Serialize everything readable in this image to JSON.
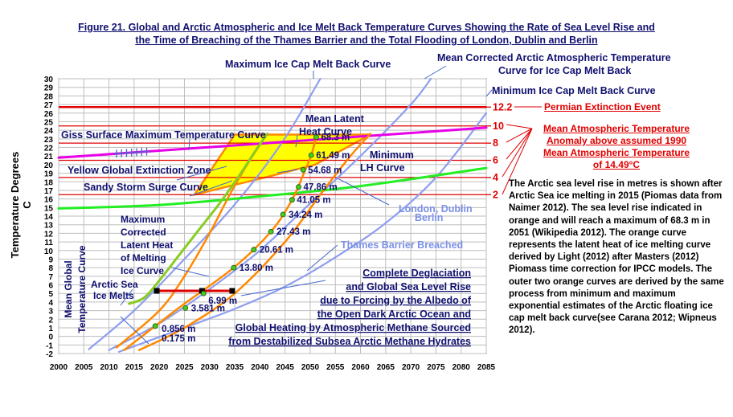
{
  "title_lines": [
    "Figure 21.  Global and Arctic Atmospheric and Ice Melt Back Temperature Curves Showing the Rate of Sea Level Rise and",
    "the Time of Breaching of the Thames Barrier and the Total Flooding of London, Dublin and Berlin"
  ],
  "side_text": "The Arctic sea level rise in metres is shown after Arctic Sea ice melting in 2015 (Piomas data from Naimer 2012). The sea level rise indicated in orange and will reach  a maximum of 68.3 m in 2051 (Wikipedia 2012). The orange curve represents the latent heat of ice melting curve derived by Light (2012) after Masters (2012) Piomass  time correction for IPCC models. The outer two orange curves are derived by the same process from minimum and maximum exponential estimates of the Arctic  floating ice cap melt back curve(see Carana 2012; Wipneus 2012).",
  "anomaly_label_lines": [
    "Mean Atmospheric Temperature",
    "Anomaly above assumed 1990",
    "Mean Atmospheric Temperature",
    "of 14.49°C"
  ],
  "permian_label": "Permian Extinction Event",
  "colors": {
    "blue_curve": "#8e9ef0",
    "magenta": "#e800e8",
    "green": "#22ee22",
    "orange": "#ff8800",
    "olive": "#88cc22",
    "yellow": "#ffff00",
    "red": "#e00000",
    "navy_text": "#101070",
    "thames_text": "#7b90e6"
  },
  "chart_data": {
    "type": "line",
    "title": "Figure 21.  Global and Arctic Atmospheric and Ice Melt Back Temperature Curves Showing the Rate of Sea Level Rise and the Time of Breaching of the Thames Barrier and the Total Flooding of London, Dublin and Berlin",
    "xlabel": "",
    "ylabel": "Temperature Degrees C",
    "xlim": [
      2000,
      2085
    ],
    "ylim": [
      -2,
      30
    ],
    "xticks": [
      "2000",
      "2005",
      "2010",
      "2015",
      "2020",
      "2025",
      "2030",
      "2035",
      "2040",
      "2045",
      "2050",
      "2055",
      "2060",
      "2065",
      "2070",
      "2075",
      "2080",
      "2085"
    ],
    "yticks": [
      "-2",
      "-1",
      "0",
      "1",
      "2",
      "3",
      "4",
      "5",
      "6",
      "7",
      "8",
      "9",
      "10",
      "11",
      "12",
      "13",
      "14",
      "15",
      "16",
      "17",
      "18",
      "19",
      "20",
      "21",
      "22",
      "23",
      "24",
      "25",
      "26",
      "27",
      "28",
      "29",
      "30"
    ],
    "grid": true,
    "horizontal_lines": [
      {
        "y": 26.7,
        "right_label": "12.2"
      },
      {
        "y": 24.5,
        "right_label": "10"
      },
      {
        "y": 22.5,
        "right_label": "8"
      },
      {
        "y": 20.5,
        "right_label": "6"
      },
      {
        "y": 18.5,
        "right_label": "4"
      },
      {
        "y": 16.5,
        "right_label": "2"
      }
    ],
    "red_segment": {
      "x": [
        2019.5,
        2028.5,
        2034.5
      ],
      "y": [
        5.3,
        5.3,
        5.3
      ]
    },
    "yellow_zone": {
      "x": [
        2035,
        2062,
        2051,
        2041,
        2034,
        2027
      ],
      "y": [
        23.5,
        23.5,
        20,
        18.5,
        17.5,
        16.5
      ]
    },
    "series": [
      {
        "name": "Maximum Ice Cap Melt Back Curve",
        "x": [
          2006,
          2015,
          2025,
          2033,
          2040,
          2046,
          2052
        ],
        "y": [
          -1.5,
          3,
          9,
          14,
          19,
          24,
          30
        ]
      },
      {
        "name": "Mean Corrected Arctic Atmospheric Temperature Curve for Ice Cap Melt Back",
        "x": [
          2010,
          2020,
          2030,
          2040,
          2050,
          2060,
          2070,
          2074
        ],
        "y": [
          -1.6,
          1.5,
          5.5,
          10,
          15.5,
          21,
          27,
          30
        ]
      },
      {
        "name": "Minimum Ice Cap Melt Back Curve",
        "x": [
          2012,
          2025,
          2035,
          2045,
          2055,
          2065,
          2075,
          2085
        ],
        "y": [
          -1.8,
          1,
          3.2,
          5.8,
          9.2,
          13.2,
          18.5,
          26
        ]
      },
      {
        "name": "Giss Surface Maximum Temperature Curve",
        "x": [
          2000,
          2085
        ],
        "y": [
          20.8,
          24.3
        ]
      },
      {
        "name": "Mean Global Temperature Curve",
        "x": [
          2000,
          2020,
          2040,
          2060,
          2085
        ],
        "y": [
          14.9,
          15.3,
          16.3,
          17.5,
          19.6
        ]
      },
      {
        "name": "Maximum Corrected Latent Heat of Melting Ice Curve",
        "x": [
          2011.5,
          2020,
          2025,
          2030,
          2034,
          2038,
          2041.5
        ],
        "y": [
          -1.3,
          3,
          7,
          12,
          16.5,
          20.5,
          23.6
        ]
      },
      {
        "name": "Mean Latent Heat Curve",
        "x": [
          2013,
          2019.2,
          2025,
          2034.8,
          2042.2,
          2046.4,
          2048.6,
          2050.2,
          2051.2
        ],
        "y": [
          -1.6,
          1.2,
          3.8,
          8.0,
          12.2,
          15.9,
          18.8,
          21.1,
          23.2
        ]
      },
      {
        "name": "Minimum LH Curve",
        "x": [
          2016,
          2025,
          2035,
          2045,
          2052,
          2058,
          2062
        ],
        "y": [
          -1.6,
          1,
          5,
          11,
          16.5,
          21,
          23.6
        ]
      },
      {
        "name": "Arctic Sea Ice Melts",
        "x": [
          2014,
          2017,
          2020,
          2024,
          2028,
          2032,
          2036,
          2039,
          2041.5
        ],
        "y": [
          3.8,
          4.5,
          6.5,
          9.5,
          12.5,
          15.5,
          18.8,
          21.5,
          23.6
        ]
      }
    ],
    "sea_level_points": [
      {
        "x": 2019.2,
        "y": 1.2,
        "label": "0.856 m"
      },
      {
        "x": 2019.2,
        "y": 1.2,
        "label": "0.175 m"
      },
      {
        "x": 2025.2,
        "y": 3.3,
        "label": "3.581 m"
      },
      {
        "x": 2028.8,
        "y": 5.0,
        "label": "6.99 m"
      },
      {
        "x": 2034.8,
        "y": 8.0,
        "label": "13.80 m"
      },
      {
        "x": 2038.8,
        "y": 10.1,
        "label": "20.61 m"
      },
      {
        "x": 2042.2,
        "y": 12.2,
        "label": "27.43 m"
      },
      {
        "x": 2044.6,
        "y": 14.2,
        "label": "34.24 m"
      },
      {
        "x": 2046.4,
        "y": 15.9,
        "label": "41.05 m"
      },
      {
        "x": 2047.7,
        "y": 17.4,
        "label": "47.86 m"
      },
      {
        "x": 2048.6,
        "y": 19.4,
        "label": "54.68 m"
      },
      {
        "x": 2050.2,
        "y": 21.1,
        "label": "61.49 m"
      },
      {
        "x": 2051.2,
        "y": 23.2,
        "label": "68.3 m"
      }
    ],
    "giss_markers_x": [
      2011.5,
      2012.5,
      2013.5,
      2014.5,
      2015.5,
      2016.5,
      2017.5
    ],
    "annotations": [
      "Maximum Ice Cap Melt Back Curve",
      "Mean Corrected Arctic Atmospheric Temperature",
      "Curve for Ice Cap Melt Back",
      "Minimum Ice Cap Melt Back Curve",
      "Giss Surface Maximum Temperature Curve",
      "Mean Latent",
      "Heat Curve",
      "Minimum",
      "LH Curve",
      "Yellow Global Extinction Zone",
      "Sandy Storm Surge Curve",
      "London, Dublin",
      "Berlin",
      "Thames Barrier Breached",
      "Maximum",
      "Corrected",
      "Latent Heat",
      "of Melting",
      "Ice Curve",
      "Mean Global",
      "Temperature Curve",
      "Arctic Sea",
      "Ice Melts",
      "Complete Deglaciation",
      "and Global Sea Level Rise",
      "due to Forcing by the Albedo of",
      "the Open Dark Arctic Ocean and",
      "Global Heating by Atmospheric Methane Sourced",
      "from Destabilized Subsea Arctic Methane Hydrates"
    ]
  }
}
